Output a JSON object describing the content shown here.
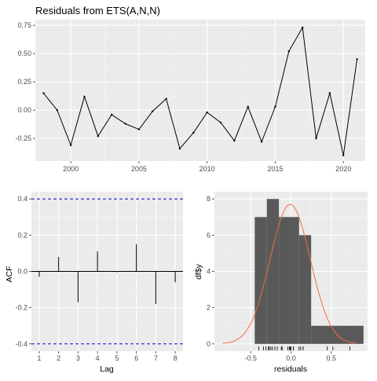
{
  "chart_data": [
    {
      "type": "line",
      "title": "Residuals from ETS(A,N,N)",
      "xlabel": "",
      "ylabel": "",
      "xlim": [
        1997.4,
        2021.6
      ],
      "ylim": [
        -0.45,
        0.8
      ],
      "x_ticks": [
        2000,
        2005,
        2010,
        2015,
        2020
      ],
      "y_ticks": [
        -0.25,
        0.0,
        0.25,
        0.5,
        0.75
      ],
      "y_tick_labels": [
        "-0.25",
        "0.00",
        "0.25",
        "0.50",
        "0.75"
      ],
      "grid": true,
      "x": [
        1998,
        1999,
        2000,
        2001,
        2002,
        2003,
        2004,
        2005,
        2006,
        2007,
        2008,
        2009,
        2010,
        2011,
        2012,
        2013,
        2014,
        2015,
        2016,
        2017,
        2018,
        2019,
        2020,
        2021
      ],
      "y": [
        0.15,
        0.0,
        -0.31,
        0.12,
        -0.23,
        -0.04,
        -0.12,
        -0.17,
        -0.01,
        0.1,
        -0.34,
        -0.2,
        -0.02,
        -0.11,
        -0.27,
        0.03,
        -0.28,
        0.03,
        0.52,
        0.73,
        -0.25,
        0.15,
        -0.4,
        0.45
      ],
      "line_color": "#000000"
    },
    {
      "type": "bar",
      "xlabel": "Lag",
      "ylabel": "ACF",
      "xlim": [
        0.6,
        8.4
      ],
      "ylim": [
        -0.44,
        0.44
      ],
      "x_ticks": [
        1,
        2,
        3,
        4,
        5,
        6,
        7,
        8
      ],
      "y_ticks": [
        -0.4,
        -0.2,
        0.0,
        0.2,
        0.4
      ],
      "y_tick_labels": [
        "-0.4",
        "-0.2",
        "0.0",
        "0.2",
        "0.4"
      ],
      "grid": true,
      "lags": [
        1,
        2,
        3,
        4,
        5,
        6,
        7,
        8
      ],
      "values": [
        -0.03,
        0.08,
        -0.17,
        0.11,
        -0.005,
        0.15,
        -0.18,
        -0.06
      ],
      "confidence_bounds": [
        -0.4,
        0.4
      ],
      "bound_color": "#0000cc"
    },
    {
      "type": "bar",
      "subtype": "histogram",
      "xlabel": "residuals",
      "ylabel": "df$y",
      "xlim": [
        -0.95,
        0.95
      ],
      "ylim": [
        -0.4,
        8.4
      ],
      "x_ticks": [
        -0.5,
        0.0,
        0.5
      ],
      "x_tick_labels": [
        "-0.5",
        "0.0",
        "0.5"
      ],
      "y_ticks": [
        0,
        2,
        4,
        6,
        8
      ],
      "y_tick_labels": [
        "0",
        "2",
        "4",
        "6",
        "8"
      ],
      "grid": true,
      "bins": [
        {
          "x0": -0.45,
          "x1": -0.3,
          "count": 7
        },
        {
          "x0": -0.3,
          "x1": -0.15,
          "count": 8
        },
        {
          "x0": -0.15,
          "x1": 0.1,
          "count": 7
        },
        {
          "x0": 0.1,
          "x1": 0.25,
          "count": 6
        },
        {
          "x0": 0.25,
          "x1": 0.9,
          "count": 1
        }
      ],
      "bar_color": "#595959",
      "density_color": "#f46d43",
      "density_mean": -0.01,
      "density_sd": 0.25,
      "density_peak": 7.7,
      "rug": [
        -0.4,
        -0.34,
        -0.31,
        -0.28,
        -0.27,
        -0.25,
        -0.23,
        -0.2,
        -0.17,
        -0.12,
        -0.11,
        -0.04,
        -0.02,
        -0.01,
        0.0,
        0.03,
        0.03,
        0.1,
        0.12,
        0.15,
        0.15,
        0.45,
        0.52,
        0.73
      ]
    }
  ]
}
